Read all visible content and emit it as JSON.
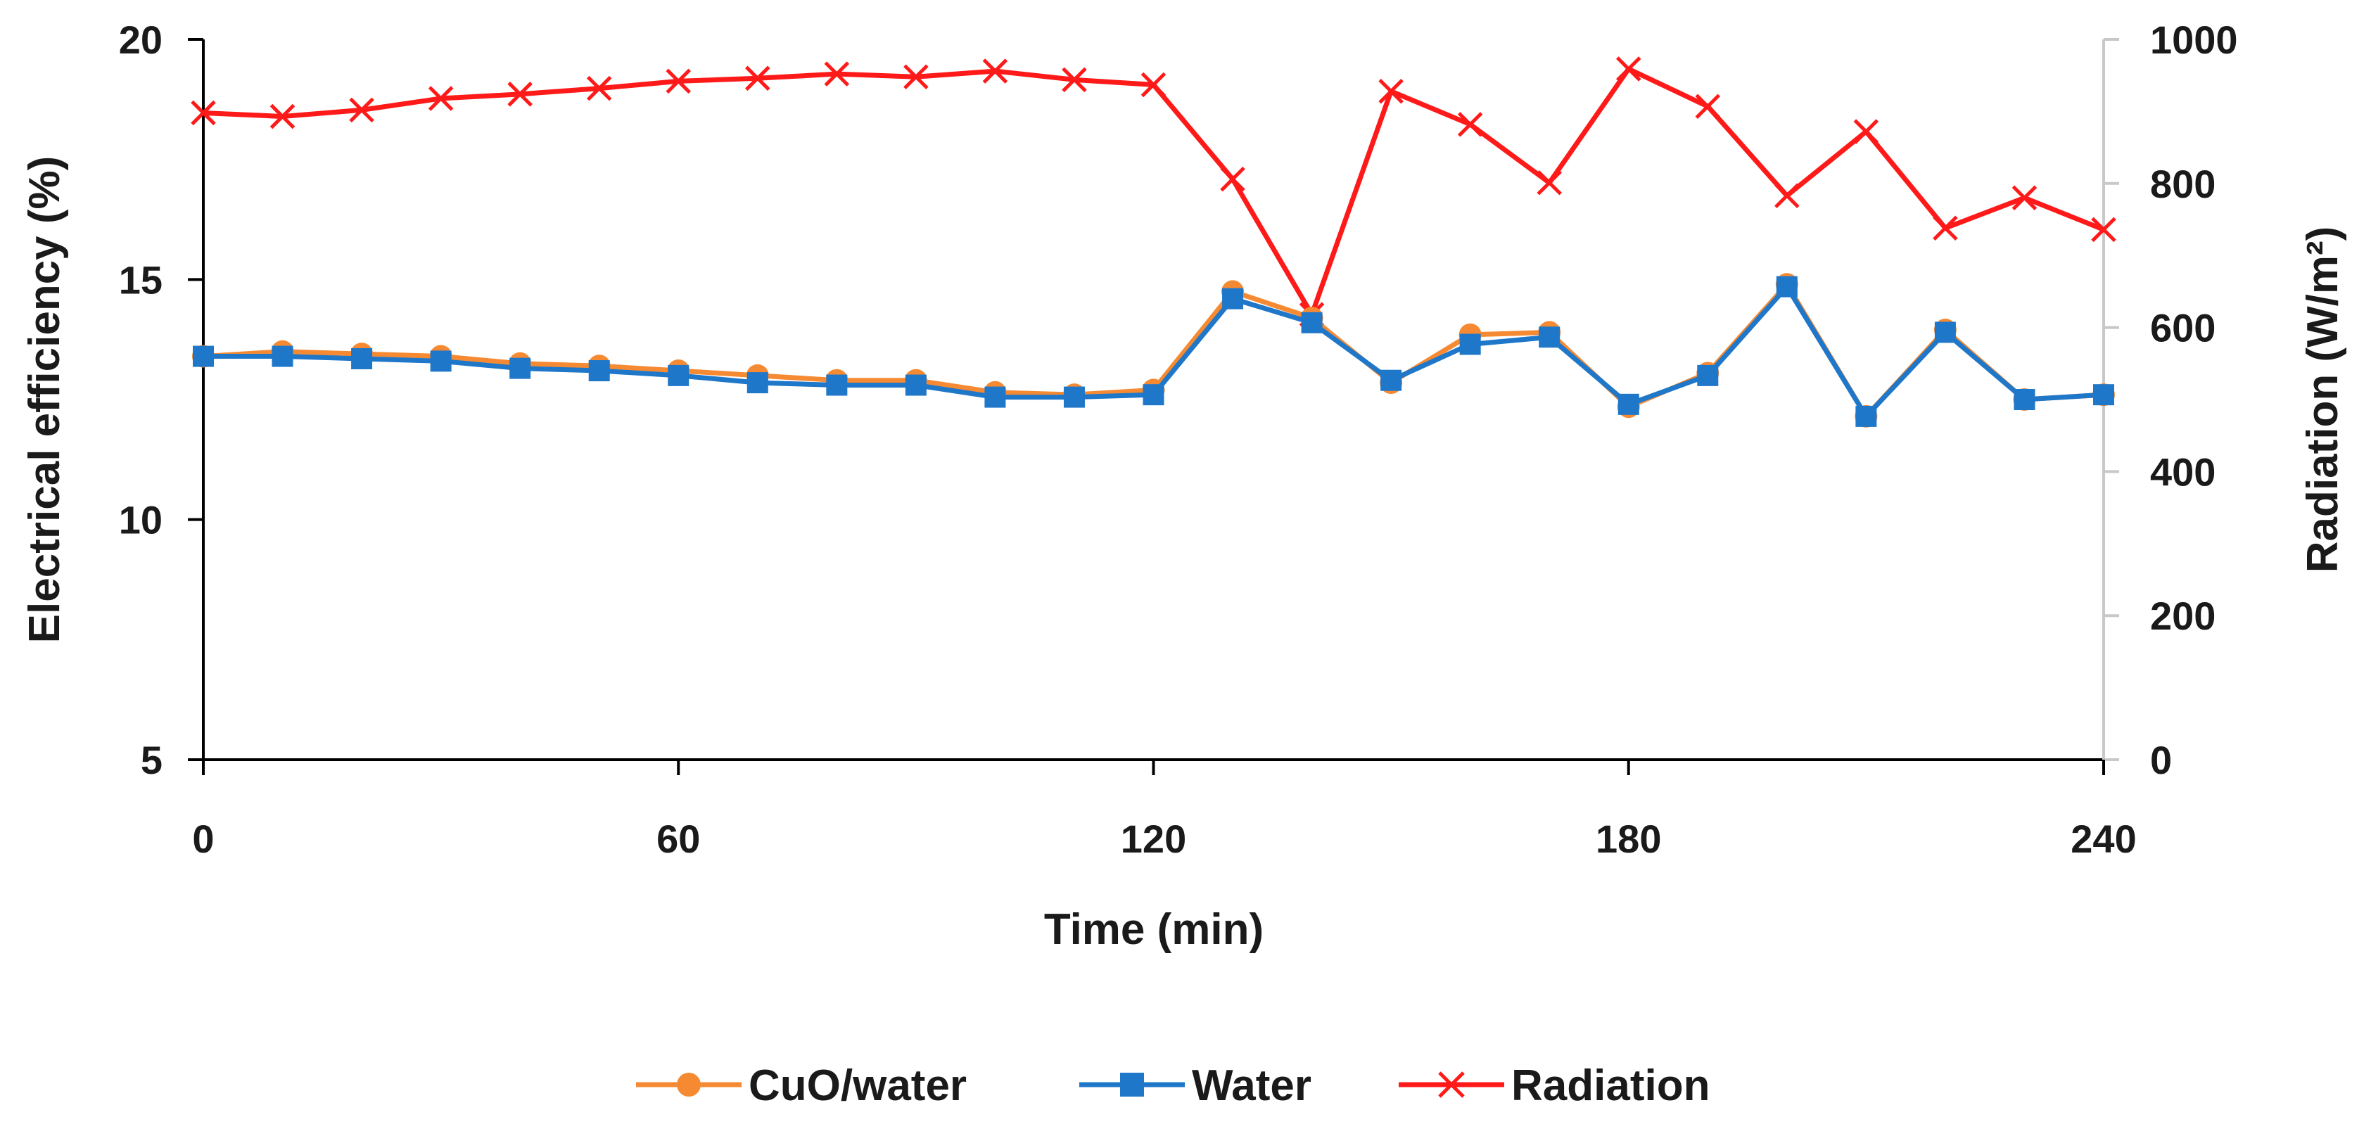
{
  "chart_data": {
    "type": "line",
    "title": "",
    "xlabel": "Time (min)",
    "ylabel": "Electrical efficiency (%)",
    "y2label": "Radiation (W/m²)",
    "xlim": [
      0,
      240
    ],
    "ylim": [
      5,
      20
    ],
    "y2lim": [
      0,
      1000
    ],
    "xticks": [
      "0",
      "60",
      "120",
      "180",
      "240"
    ],
    "yticks": [
      "5",
      "10",
      "15",
      "20"
    ],
    "y2ticks": [
      "0",
      "200",
      "400",
      "600",
      "800",
      "1000"
    ],
    "grid": false,
    "legend_position": "bottom",
    "x": [
      0,
      10,
      20,
      30,
      40,
      50,
      60,
      70,
      80,
      90,
      100,
      110,
      120,
      130,
      140,
      150,
      160,
      170,
      180,
      190,
      200,
      210,
      220,
      230,
      240
    ],
    "series": [
      {
        "name": "CuO/water",
        "axis": "left",
        "color": "#f58a33",
        "marker": "circle",
        "values": [
          13.4,
          13.5,
          13.45,
          13.4,
          13.25,
          13.2,
          13.1,
          13.0,
          12.9,
          12.9,
          12.65,
          12.6,
          12.7,
          14.75,
          14.2,
          12.85,
          13.85,
          13.9,
          12.35,
          13.05,
          14.9,
          12.15,
          13.95,
          12.5,
          12.6
        ]
      },
      {
        "name": "Water",
        "axis": "left",
        "color": "#1f77c9",
        "marker": "square",
        "values": [
          13.4,
          13.4,
          13.35,
          13.3,
          13.15,
          13.1,
          13.0,
          12.85,
          12.8,
          12.8,
          12.55,
          12.55,
          12.6,
          14.6,
          14.1,
          12.9,
          13.65,
          13.8,
          12.4,
          13.0,
          14.85,
          12.15,
          13.9,
          12.5,
          12.6
        ]
      },
      {
        "name": "Radiation",
        "axis": "right",
        "color": "#ff1a1a",
        "marker": "x",
        "values": [
          898,
          893,
          902,
          918,
          924,
          932,
          942,
          946,
          952,
          948,
          956,
          944,
          937,
          806,
          618,
          928,
          882,
          801,
          959,
          907,
          783,
          872,
          738,
          780,
          736
        ]
      }
    ]
  }
}
